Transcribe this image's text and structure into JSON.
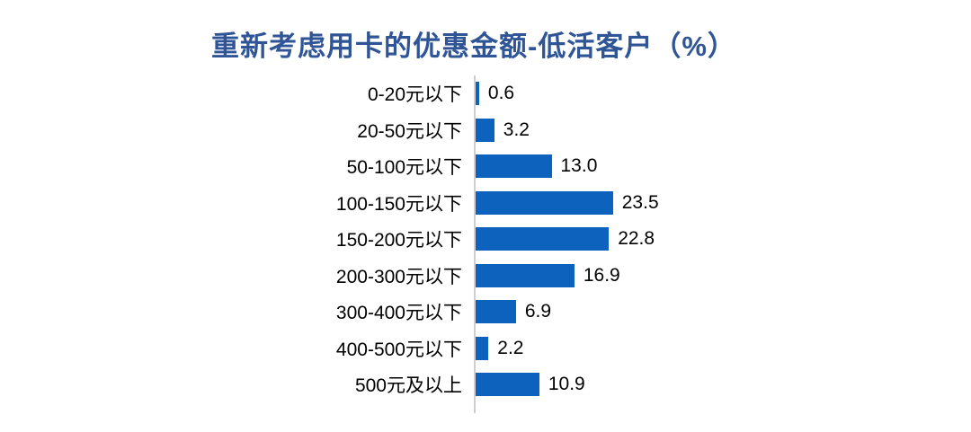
{
  "title": "重新考虑用卡的优惠金额-低活客户（%）",
  "colors": {
    "title": "#2F5597",
    "bar": "#0D62BD",
    "axis": "#CFCFCF",
    "text": "#000000",
    "background": "#FFFFFF"
  },
  "chart_data": {
    "type": "bar",
    "orientation": "horizontal",
    "title": "重新考虑用卡的优惠金额-低活客户（%）",
    "categories": [
      "0-20元以下",
      "20-50元以下",
      "50-100元以下",
      "100-150元以下",
      "150-200元以下",
      "200-300元以下",
      "300-400元以下",
      "400-500元以下",
      "500元及以上"
    ],
    "values": [
      0.6,
      3.2,
      13.0,
      23.5,
      22.8,
      16.9,
      6.9,
      2.2,
      10.9
    ],
    "value_labels": [
      "0.6",
      "3.2",
      "13.0",
      "23.5",
      "22.8",
      "16.9",
      "6.9",
      "2.2",
      "10.9"
    ],
    "xlabel": "",
    "ylabel": "",
    "xlim": [
      0,
      25
    ],
    "unit": "%",
    "grid": false,
    "legend": false,
    "data_labels": "outside-end"
  }
}
